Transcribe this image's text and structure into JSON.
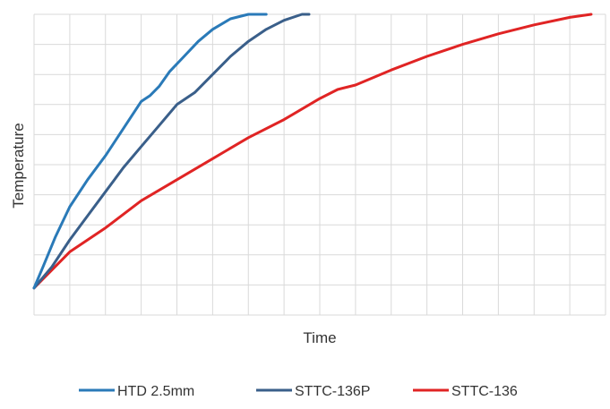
{
  "chart_data": {
    "type": "line",
    "title": "",
    "xlabel": "Time",
    "ylabel": "Temperature",
    "xlim": [
      0,
      16
    ],
    "ylim": [
      0,
      10
    ],
    "grid": true,
    "legend_position": "bottom",
    "x_tick_labels_shown": false,
    "y_tick_labels_shown": false,
    "series": [
      {
        "name": "HTD 2.5mm",
        "color": "#2a7ab8",
        "x": [
          0,
          0.25,
          0.6,
          1.0,
          1.5,
          2.0,
          2.5,
          3.0,
          3.25,
          3.5,
          3.8,
          4.2,
          4.6,
          5.0,
          5.5,
          6.0,
          6.5
        ],
        "y": [
          0.9,
          1.6,
          2.6,
          3.6,
          4.5,
          5.3,
          6.2,
          7.1,
          7.3,
          7.6,
          8.1,
          8.6,
          9.1,
          9.5,
          9.85,
          10.0,
          10.0
        ]
      },
      {
        "name": "STTC-136P",
        "color": "#3a5f8a",
        "x": [
          0,
          0.5,
          1.0,
          1.5,
          2.0,
          2.5,
          3.0,
          3.5,
          4.0,
          4.5,
          5.0,
          5.5,
          6.0,
          6.5,
          7.0,
          7.5,
          7.7
        ],
        "y": [
          0.9,
          1.6,
          2.5,
          3.3,
          4.1,
          4.9,
          5.6,
          6.3,
          7.0,
          7.4,
          8.0,
          8.6,
          9.1,
          9.5,
          9.8,
          10.0,
          10.0
        ]
      },
      {
        "name": "STTC-136",
        "color": "#e02424",
        "x": [
          0,
          1,
          2,
          3,
          4,
          5,
          6,
          7,
          8,
          8.5,
          9,
          10,
          11,
          12,
          13,
          14,
          15,
          15.6
        ],
        "y": [
          0.9,
          2.1,
          2.9,
          3.8,
          4.5,
          5.2,
          5.9,
          6.5,
          7.2,
          7.5,
          7.65,
          8.15,
          8.6,
          9.0,
          9.35,
          9.65,
          9.9,
          10.0
        ]
      }
    ]
  }
}
